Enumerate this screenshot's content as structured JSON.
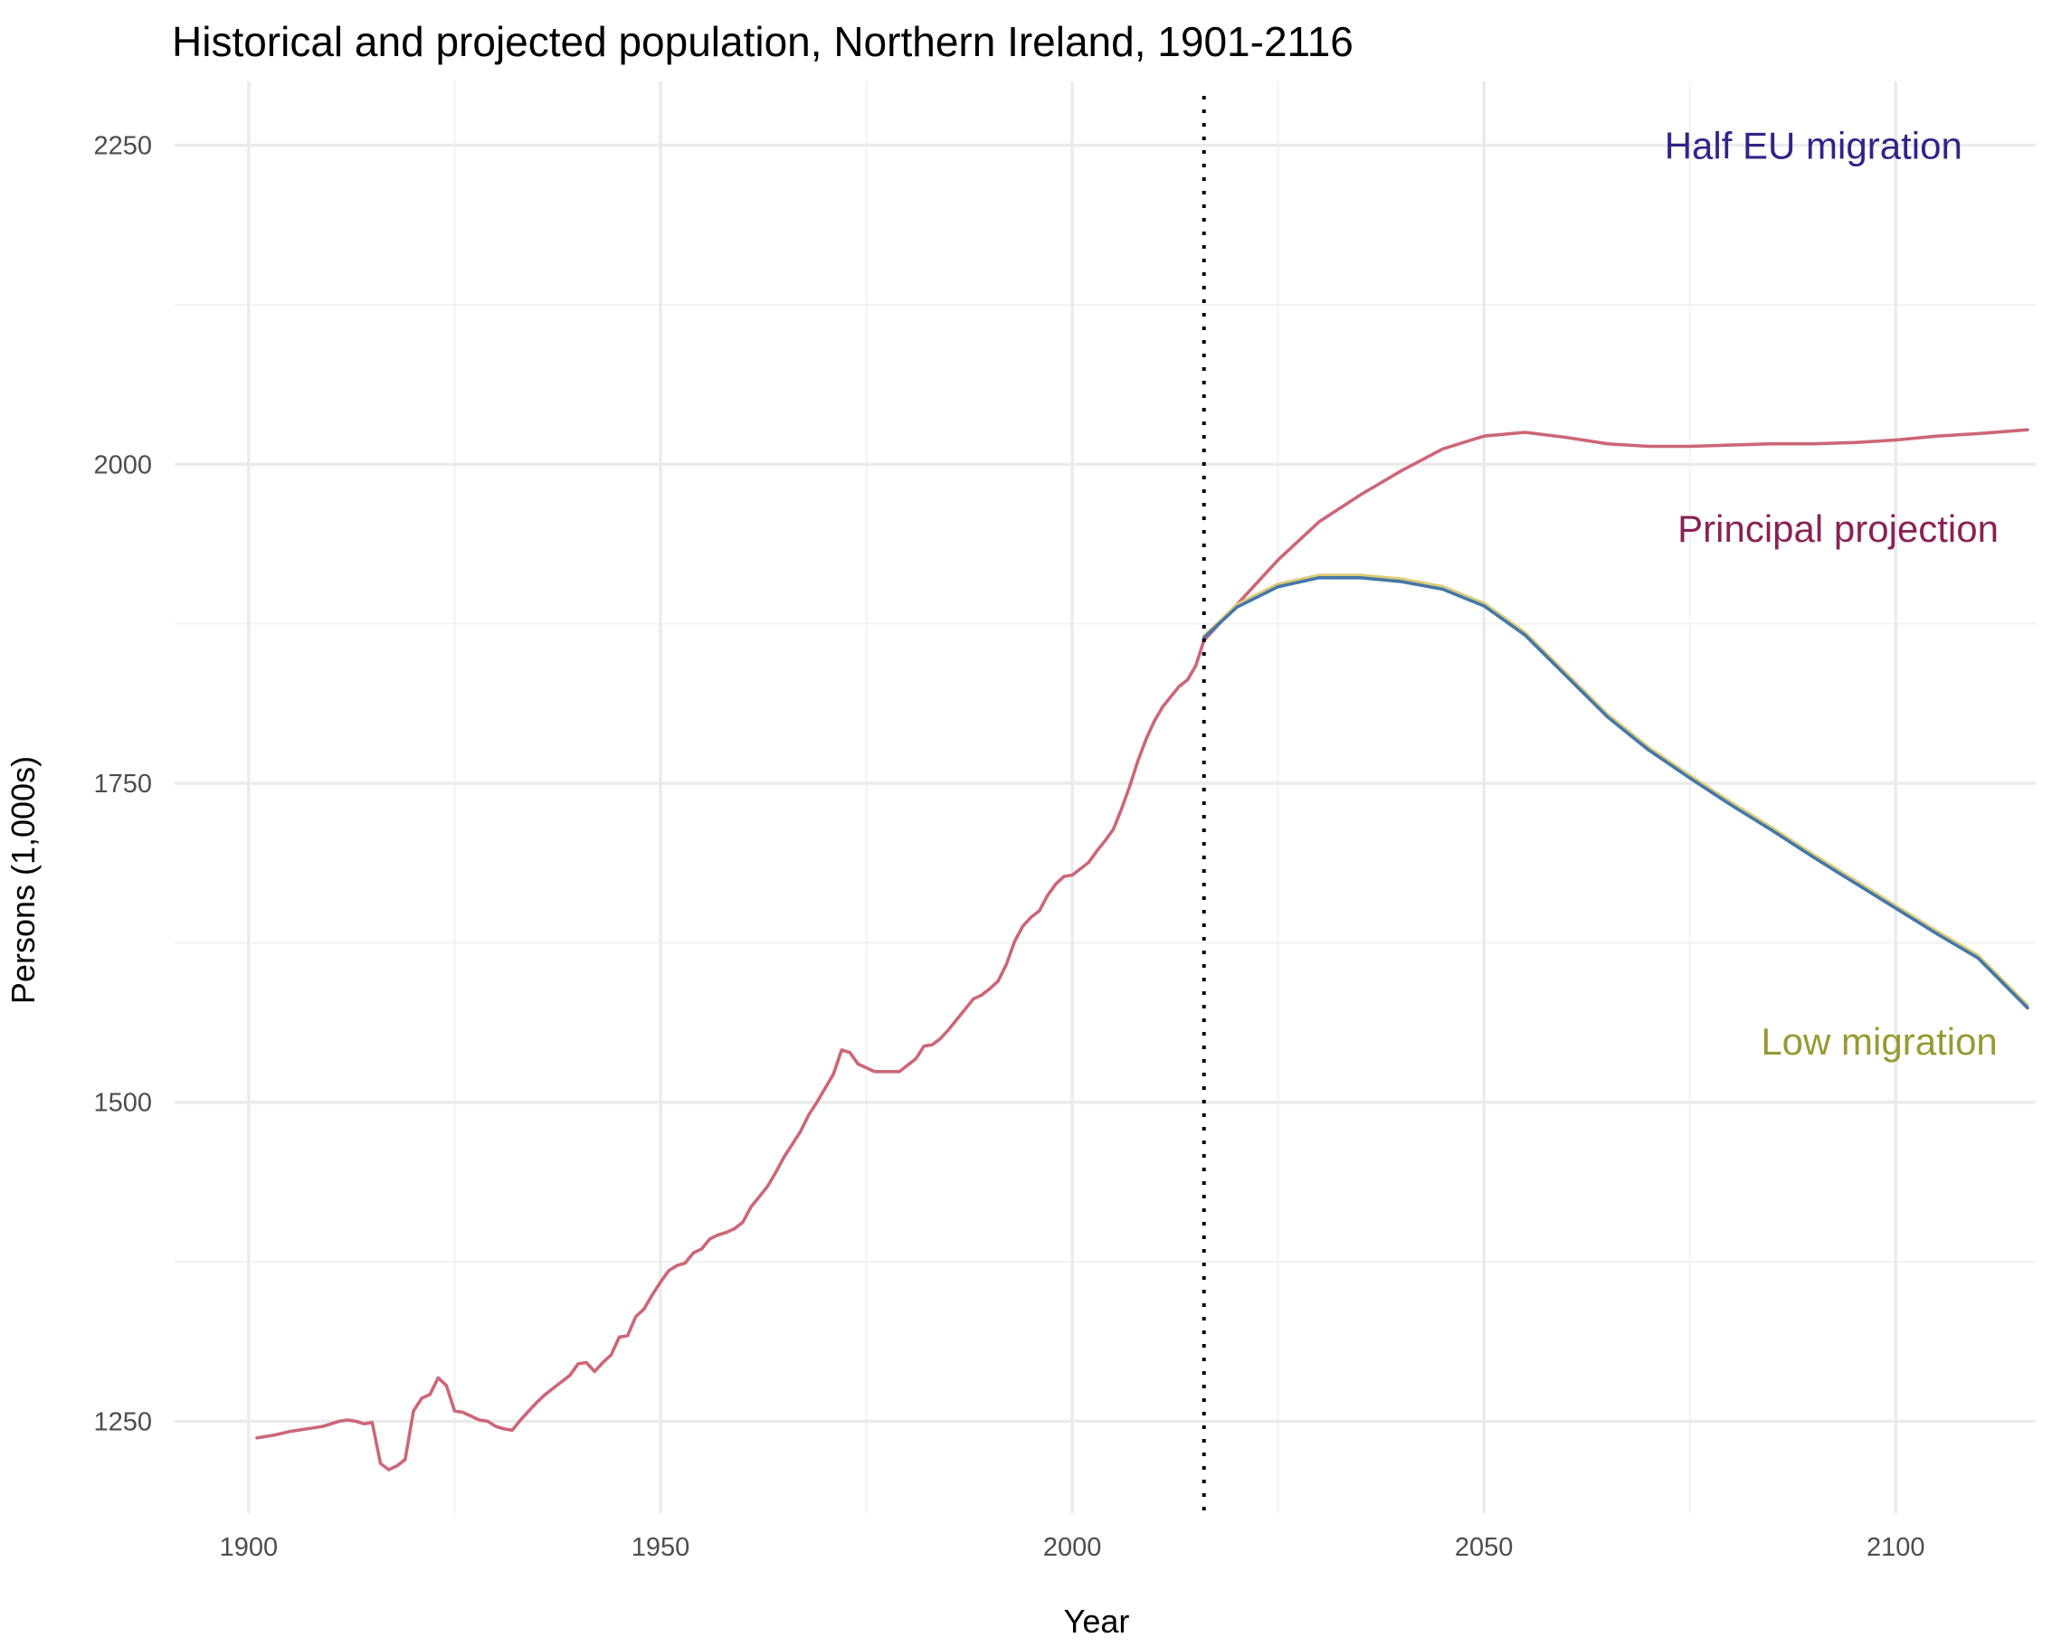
{
  "chart_data": {
    "type": "line",
    "title": "Historical and projected population, Northern Ireland, 1901-2116",
    "xlabel": "Year",
    "ylabel": "Persons (1,000s)",
    "xlim": [
      1891,
      2117
    ],
    "ylim": [
      1178,
      2300
    ],
    "x_ticks": [
      1900,
      1950,
      2000,
      2050,
      2100
    ],
    "y_ticks": [
      1250,
      1500,
      1750,
      2000,
      2250
    ],
    "grid": true,
    "projection_start_year": 2016,
    "annotations": [
      {
        "text": "Half EU migration",
        "x": 2090,
        "y": 2250,
        "color": "#332288"
      },
      {
        "text": "Principal projection",
        "x": 2093,
        "y": 1950,
        "color": "#882255"
      },
      {
        "text": "Low migration",
        "x": 2098,
        "y": 1548,
        "color": "#999933"
      }
    ],
    "series": [
      {
        "key": "historical",
        "color": "#cc6677",
        "points": [
          [
            1901,
            1237
          ],
          [
            1903,
            1239
          ],
          [
            1905,
            1242
          ],
          [
            1907,
            1244
          ],
          [
            1909,
            1246
          ],
          [
            1911,
            1250
          ],
          [
            1912,
            1251
          ],
          [
            1913,
            1250
          ],
          [
            1914,
            1248
          ],
          [
            1915,
            1249
          ],
          [
            1916,
            1217
          ],
          [
            1917,
            1212
          ],
          [
            1918,
            1215
          ],
          [
            1919,
            1220
          ],
          [
            1920,
            1258
          ],
          [
            1921,
            1268
          ],
          [
            1922,
            1271
          ],
          [
            1923,
            1284
          ],
          [
            1924,
            1278
          ],
          [
            1925,
            1258
          ],
          [
            1926,
            1257
          ],
          [
            1927,
            1254
          ],
          [
            1928,
            1251
          ],
          [
            1929,
            1250
          ],
          [
            1930,
            1246
          ],
          [
            1931,
            1244
          ],
          [
            1932,
            1243
          ],
          [
            1933,
            1251
          ],
          [
            1934,
            1258
          ],
          [
            1935,
            1265
          ],
          [
            1936,
            1271
          ],
          [
            1937,
            1276
          ],
          [
            1938,
            1281
          ],
          [
            1939,
            1286
          ],
          [
            1940,
            1295
          ],
          [
            1941,
            1296
          ],
          [
            1942,
            1289
          ],
          [
            1943,
            1296
          ],
          [
            1944,
            1302
          ],
          [
            1945,
            1316
          ],
          [
            1946,
            1317
          ],
          [
            1947,
            1332
          ],
          [
            1948,
            1338
          ],
          [
            1949,
            1349
          ],
          [
            1950,
            1359
          ],
          [
            1951,
            1368
          ],
          [
            1952,
            1372
          ],
          [
            1953,
            1374
          ],
          [
            1954,
            1382
          ],
          [
            1955,
            1385
          ],
          [
            1956,
            1393
          ],
          [
            1957,
            1396
          ],
          [
            1958,
            1398
          ],
          [
            1959,
            1401
          ],
          [
            1960,
            1406
          ],
          [
            1961,
            1418
          ],
          [
            1962,
            1426
          ],
          [
            1963,
            1434
          ],
          [
            1964,
            1445
          ],
          [
            1965,
            1457
          ],
          [
            1966,
            1467
          ],
          [
            1967,
            1477
          ],
          [
            1968,
            1490
          ],
          [
            1969,
            1500
          ],
          [
            1970,
            1511
          ],
          [
            1971,
            1522
          ],
          [
            1972,
            1541
          ],
          [
            1973,
            1539
          ],
          [
            1974,
            1530
          ],
          [
            1975,
            1527
          ],
          [
            1976,
            1524
          ],
          [
            1977,
            1524
          ],
          [
            1978,
            1524
          ],
          [
            1979,
            1524
          ],
          [
            1980,
            1529
          ],
          [
            1981,
            1534
          ],
          [
            1982,
            1544
          ],
          [
            1983,
            1545
          ],
          [
            1984,
            1550
          ],
          [
            1985,
            1557
          ],
          [
            1986,
            1565
          ],
          [
            1987,
            1573
          ],
          [
            1988,
            1581
          ],
          [
            1989,
            1584
          ],
          [
            1990,
            1589
          ],
          [
            1991,
            1595
          ],
          [
            1992,
            1608
          ],
          [
            1993,
            1626
          ],
          [
            1994,
            1638
          ],
          [
            1995,
            1645
          ],
          [
            1996,
            1650
          ],
          [
            1997,
            1662
          ],
          [
            1998,
            1671
          ],
          [
            1999,
            1677
          ],
          [
            2000,
            1678
          ],
          [
            2001,
            1683
          ],
          [
            2002,
            1688
          ],
          [
            2003,
            1697
          ],
          [
            2004,
            1705
          ],
          [
            2005,
            1714
          ],
          [
            2006,
            1730
          ],
          [
            2007,
            1748
          ],
          [
            2008,
            1768
          ],
          [
            2009,
            1785
          ],
          [
            2010,
            1799
          ],
          [
            2011,
            1810
          ],
          [
            2012,
            1818
          ],
          [
            2013,
            1826
          ],
          [
            2014,
            1831
          ],
          [
            2015,
            1842
          ],
          [
            2016,
            1862
          ]
        ]
      },
      {
        "key": "principal",
        "color": "#cc6677",
        "points": [
          [
            2016,
            1862
          ],
          [
            2020,
            1890
          ],
          [
            2025,
            1925
          ],
          [
            2030,
            1955
          ],
          [
            2035,
            1976
          ],
          [
            2040,
            1995
          ],
          [
            2045,
            2012
          ],
          [
            2050,
            2022
          ],
          [
            2055,
            2025
          ],
          [
            2060,
            2021
          ],
          [
            2065,
            2016
          ],
          [
            2070,
            2014
          ],
          [
            2075,
            2014
          ],
          [
            2080,
            2015
          ],
          [
            2085,
            2016
          ],
          [
            2090,
            2016
          ],
          [
            2095,
            2017
          ],
          [
            2100,
            2019
          ],
          [
            2105,
            2022
          ],
          [
            2110,
            2024
          ],
          [
            2116,
            2027
          ]
        ]
      },
      {
        "key": "low",
        "color": "#ddcc77",
        "points": [
          [
            2016,
            1865
          ],
          [
            2020,
            1890
          ],
          [
            2025,
            1906
          ],
          [
            2030,
            1913
          ],
          [
            2035,
            1913
          ],
          [
            2040,
            1910
          ],
          [
            2045,
            1904
          ],
          [
            2050,
            1891
          ],
          [
            2055,
            1868
          ],
          [
            2060,
            1836
          ],
          [
            2065,
            1804
          ],
          [
            2070,
            1778
          ],
          [
            2075,
            1756
          ],
          [
            2080,
            1735
          ],
          [
            2085,
            1715
          ],
          [
            2090,
            1694
          ],
          [
            2095,
            1674
          ],
          [
            2100,
            1654
          ],
          [
            2105,
            1634
          ],
          [
            2110,
            1615
          ],
          [
            2116,
            1576
          ]
        ]
      },
      {
        "key": "half_eu",
        "color": "#4477aa",
        "points": [
          [
            2016,
            1864
          ],
          [
            2020,
            1888
          ],
          [
            2025,
            1904
          ],
          [
            2030,
            1911
          ],
          [
            2035,
            1911
          ],
          [
            2040,
            1908
          ],
          [
            2045,
            1902
          ],
          [
            2050,
            1889
          ],
          [
            2055,
            1866
          ],
          [
            2060,
            1834
          ],
          [
            2065,
            1802
          ],
          [
            2070,
            1776
          ],
          [
            2075,
            1754
          ],
          [
            2080,
            1733
          ],
          [
            2085,
            1713
          ],
          [
            2090,
            1692
          ],
          [
            2095,
            1672
          ],
          [
            2100,
            1652
          ],
          [
            2105,
            1632
          ],
          [
            2110,
            1613
          ],
          [
            2116,
            1574
          ]
        ]
      }
    ]
  }
}
